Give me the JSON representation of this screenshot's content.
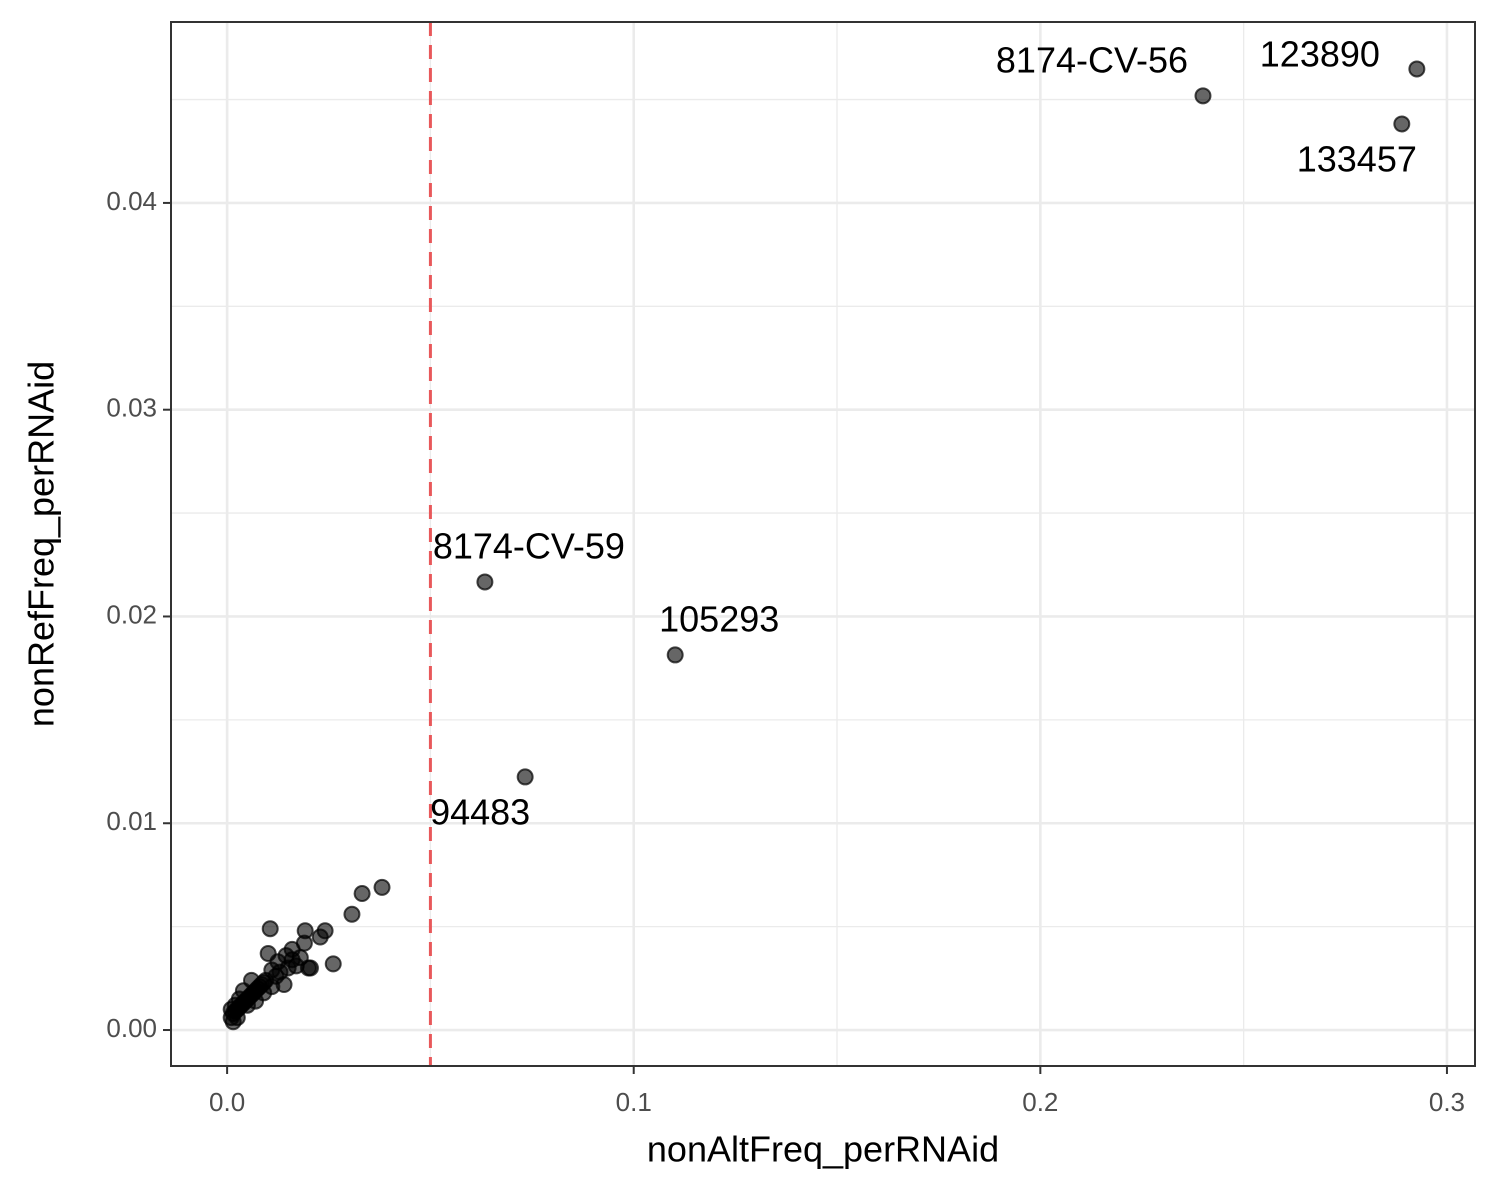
{
  "chart_data": {
    "type": "scatter",
    "x_label": "nonAltFreq_perRNAid",
    "y_label": "nonRefFreq_perRNAid",
    "xlim": [
      -0.0138,
      0.3069
    ],
    "ylim": [
      -0.00174,
      0.04875
    ],
    "xticks": [
      {
        "value": 0,
        "label": "0.0"
      },
      0.1,
      0.2,
      0.3
    ],
    "yticks": [
      {
        "value": 0,
        "label": "0.00"
      },
      0.01,
      0.02,
      0.03,
      0.04
    ],
    "xminor": [
      0.05,
      0.15,
      0.25
    ],
    "yminor": [
      0.005,
      0.015,
      0.025,
      0.035,
      0.045
    ],
    "grid": true,
    "vline": 0.05,
    "vline_color": "#e8585a",
    "color": "#000000",
    "x": [
      0.24,
      0.2926,
      0.2889,
      0.0634,
      0.1102,
      0.0733,
      0.001,
      0.0015,
      0.002,
      0.0025,
      0.003,
      0.0035,
      0.004,
      0.0045,
      0.005,
      0.0055,
      0.006,
      0.0065,
      0.007,
      0.0075,
      0.008,
      0.0085,
      0.009,
      0.0095,
      0.006,
      0.004,
      0.003,
      0.002,
      0.001,
      0.0015,
      0.0025,
      0.005,
      0.007,
      0.009,
      0.011,
      0.012,
      0.013,
      0.014,
      0.015,
      0.016,
      0.017,
      0.018,
      0.019,
      0.02,
      0.0106,
      0.0101,
      0.016,
      0.0192,
      0.0229,
      0.0241,
      0.0261,
      0.0307,
      0.0332,
      0.0381,
      0.0205,
      0.011,
      0.0125,
      0.0145
    ],
    "y": [
      0.04518,
      0.04648,
      0.04382,
      0.02167,
      0.01814,
      0.01224,
      0.0006,
      0.0008,
      0.0009,
      0.001,
      0.0011,
      0.0012,
      0.0013,
      0.0014,
      0.0015,
      0.0016,
      0.0017,
      0.0018,
      0.0019,
      0.002,
      0.0021,
      0.0022,
      0.0023,
      0.0024,
      0.0024,
      0.0019,
      0.0015,
      0.0012,
      0.001,
      0.0004,
      0.0006,
      0.0012,
      0.0014,
      0.0018,
      0.0021,
      0.0026,
      0.0028,
      0.0022,
      0.003,
      0.0034,
      0.0031,
      0.0035,
      0.0042,
      0.003,
      0.0049,
      0.0037,
      0.0039,
      0.0048,
      0.0045,
      0.0048,
      0.0032,
      0.0056,
      0.0066,
      0.0069,
      0.003,
      0.0029,
      0.0033,
      0.0036
    ],
    "labels": [
      "8174-CV-56",
      "123890",
      "133457",
      "8174-CV-59",
      "105293",
      "94483",
      null,
      null,
      null,
      null,
      null,
      null,
      null,
      null,
      null,
      null,
      null,
      null,
      null,
      null,
      null,
      null,
      null,
      null,
      null,
      null,
      null,
      null,
      null,
      null,
      null,
      null,
      null,
      null,
      null,
      null,
      null,
      null,
      null,
      null,
      null,
      null,
      null,
      null,
      null,
      null,
      null,
      null,
      null,
      null,
      null,
      null,
      null,
      null,
      null,
      null,
      null,
      null
    ]
  }
}
